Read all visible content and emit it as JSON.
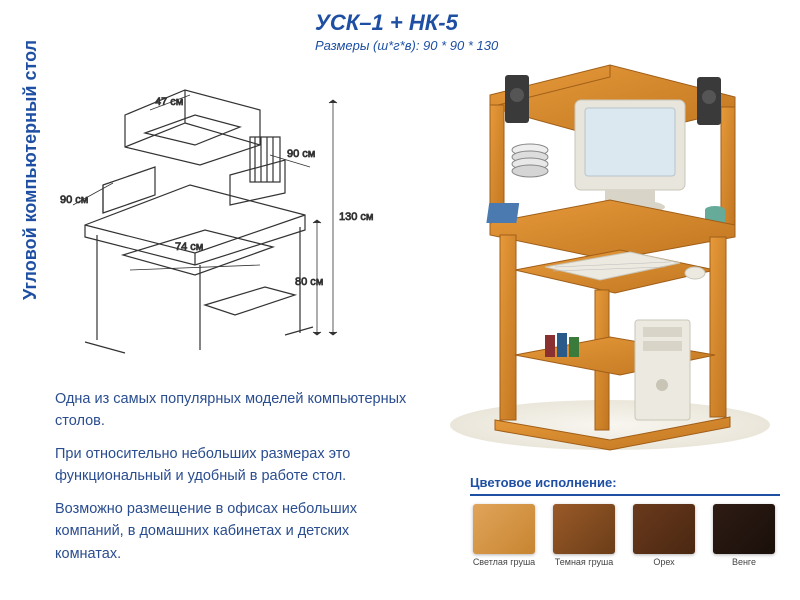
{
  "vertical_title": "Угловой компьютерный стол",
  "header": {
    "model": "УСК–1 + НК-5",
    "dim_label": "Размеры (ш*г*в): 90 * 90 * 130"
  },
  "diagram": {
    "dims": {
      "left_depth": "90 см",
      "top_shelf": "47 см",
      "right_depth": "90 см",
      "keyboard_tray": "74 см",
      "total_height": "130 cм",
      "desk_height": "80 см"
    },
    "stroke": "#333333"
  },
  "photo": {
    "wood_color": "#d98a2e",
    "wood_dark": "#b56d1a",
    "monitor_body": "#e8e6dc",
    "monitor_screen": "#dce8f0",
    "speaker": "#3a3a3a",
    "tower": "#ece9e0"
  },
  "description": {
    "p1": "Одна из самых популярных моделей компьютерных столов.",
    "p2": "При относительно небольших размерах это функциональный и удобный в работе стол.",
    "p3": "Возможно размещение в офисах небольших компаний, в домашних кабинетах и детских комнатах."
  },
  "colors": {
    "title": "Цветовое исполнение:",
    "items": [
      {
        "label": "Светлая груша",
        "hex": "#e0a45a",
        "grad": "#c78530"
      },
      {
        "label": "Темная груша",
        "hex": "#9a5a28",
        "grad": "#6b3d18"
      },
      {
        "label": "Орех",
        "hex": "#6a3a1c",
        "grad": "#4a2712"
      },
      {
        "label": "Венге",
        "hex": "#2e1c14",
        "grad": "#1a0f0a"
      }
    ]
  },
  "accent_color": "#1e4fa3"
}
